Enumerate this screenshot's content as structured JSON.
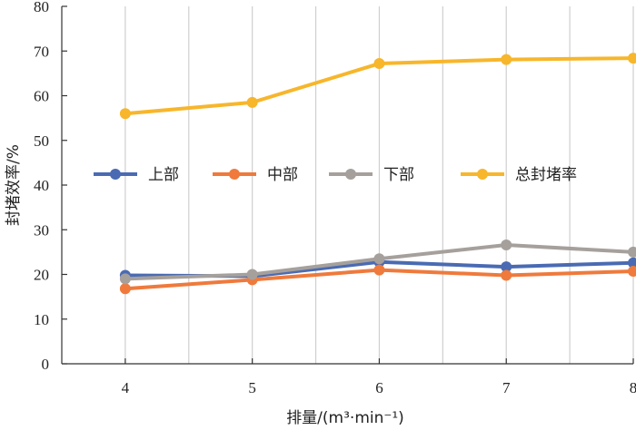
{
  "chart_data": {
    "type": "line",
    "xlabel": "排量/(m³·min⁻¹)",
    "ylabel": "封堵效率/%",
    "x": [
      4,
      5,
      6,
      7,
      8
    ],
    "xlim": [
      3.5,
      8
    ],
    "ylim": [
      0,
      80
    ],
    "xticks": [
      4,
      5,
      6,
      7,
      8
    ],
    "yticks": [
      0,
      10,
      20,
      30,
      40,
      50,
      60,
      70,
      80
    ],
    "grid": "vertical",
    "legend_position": "middle-left",
    "series": [
      {
        "name": "上部",
        "color": "#4a6bb3",
        "values": [
          19.8,
          19.6,
          22.8,
          21.7,
          22.6
        ]
      },
      {
        "name": "中部",
        "color": "#ef7a3c",
        "values": [
          16.8,
          18.8,
          21.0,
          19.8,
          20.7
        ]
      },
      {
        "name": "下部",
        "color": "#a6a09c",
        "values": [
          19.0,
          20.0,
          23.5,
          26.6,
          25.0
        ]
      },
      {
        "name": "总封堵率",
        "color": "#f7b62b",
        "values": [
          56.0,
          58.5,
          67.2,
          68.1,
          68.4
        ]
      }
    ]
  }
}
